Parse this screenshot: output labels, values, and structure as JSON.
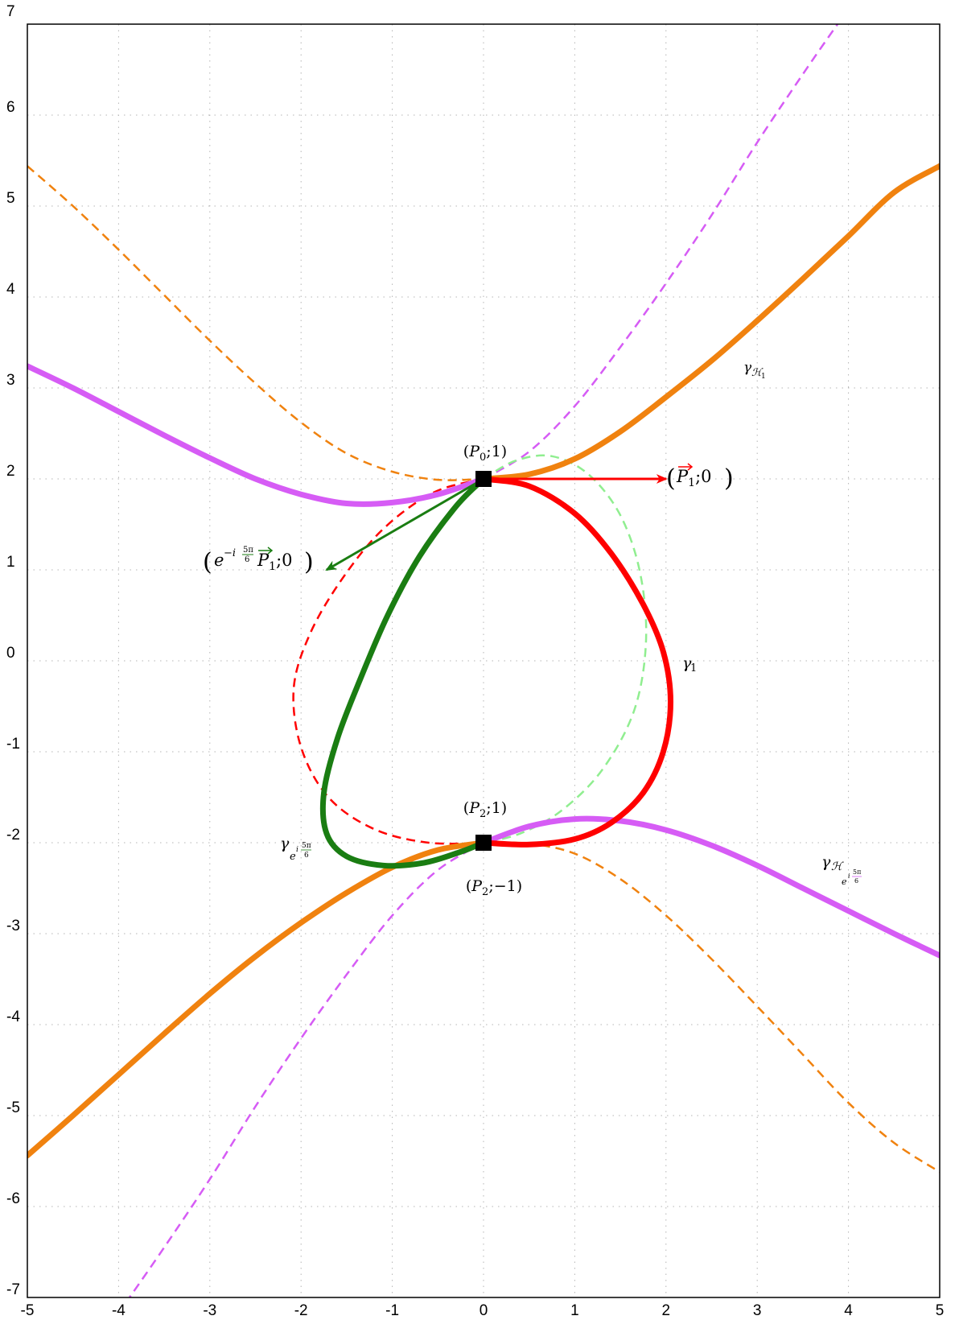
{
  "chart_data": {
    "type": "line",
    "xlim": [
      -5,
      5
    ],
    "ylim": [
      -7,
      7
    ],
    "x_ticks": [
      "-5",
      "-4",
      "-3",
      "-2",
      "-1",
      "0",
      "1",
      "2",
      "3",
      "4",
      "5"
    ],
    "y_ticks": [
      "-7",
      "-6",
      "-5",
      "-4",
      "-3",
      "-2",
      "-1",
      "0",
      "1",
      "2",
      "3",
      "4",
      "5",
      "6",
      "7"
    ],
    "grid": true,
    "series": [
      {
        "key": "gamma_1",
        "color": "#ff0000",
        "style": "solid",
        "x": [
          0,
          0.5,
          1.0,
          1.4,
          1.75,
          1.97,
          2.05,
          1.97,
          1.75,
          1.4,
          1.0,
          0.5,
          0
        ],
        "y": [
          2,
          1.92,
          1.62,
          1.18,
          0.62,
          0.1,
          -0.45,
          -1.0,
          -1.45,
          -1.78,
          -1.96,
          -2.02,
          -2
        ]
      },
      {
        "key": "gamma_1_dashed",
        "color": "#ff0000",
        "style": "dashed",
        "x": [
          0,
          -0.55,
          -1.1,
          -1.55,
          -1.9,
          -2.08,
          -2.0,
          -1.7,
          -1.2,
          -0.6,
          0
        ],
        "y": [
          2,
          1.85,
          1.45,
          0.9,
          0.3,
          -0.3,
          -0.95,
          -1.5,
          -1.85,
          -2.0,
          -2
        ]
      },
      {
        "key": "gamma_e",
        "color": "#1a7d12",
        "style": "solid",
        "x": [
          0,
          -0.3,
          -0.7,
          -1.05,
          -1.35,
          -1.6,
          -1.75,
          -1.72,
          -1.5,
          -1.1,
          -0.65,
          -0.25,
          0
        ],
        "y": [
          2,
          1.7,
          1.15,
          0.5,
          -0.2,
          -0.85,
          -1.45,
          -1.9,
          -2.15,
          -2.25,
          -2.22,
          -2.1,
          -2
        ]
      },
      {
        "key": "gamma_e_dashed",
        "color": "#90ee90",
        "style": "dashed",
        "x": [
          0,
          0.35,
          0.75,
          1.15,
          1.5,
          1.72,
          1.78,
          1.65,
          1.3,
          0.85,
          0.4,
          0
        ],
        "y": [
          2,
          2.2,
          2.25,
          2.05,
          1.6,
          0.95,
          0.2,
          -0.55,
          -1.2,
          -1.65,
          -1.9,
          -2
        ]
      },
      {
        "key": "gamma_H1",
        "color": "#f0820f",
        "style": "solid",
        "x": [
          0,
          0.5,
          1.0,
          1.5,
          2.0,
          2.5,
          3.0,
          3.5,
          4.0,
          4.5,
          5.0
        ],
        "y": [
          2,
          2.05,
          2.22,
          2.52,
          2.9,
          3.3,
          3.74,
          4.2,
          4.67,
          5.15,
          5.44
        ]
      },
      {
        "key": "gamma_H1_lower",
        "color": "#f0820f",
        "style": "solid",
        "x": [
          -5,
          -4.5,
          -4.0,
          -3.5,
          -3.0,
          -2.5,
          -2.0,
          -1.5,
          -1.0,
          -0.5,
          0
        ],
        "y": [
          -5.44,
          -5.0,
          -4.55,
          -4.1,
          -3.66,
          -3.25,
          -2.88,
          -2.55,
          -2.27,
          -2.08,
          -2
        ]
      },
      {
        "key": "gamma_H1_dashed_upper_left",
        "color": "#f0820f",
        "style": "dashed",
        "x": [
          -5,
          -4.5,
          -4.0,
          -3.5,
          -3.0,
          -2.5,
          -2.0,
          -1.5,
          -1.0,
          -0.5,
          0
        ],
        "y": [
          5.44,
          5.0,
          4.52,
          4.02,
          3.52,
          3.05,
          2.62,
          2.28,
          2.08,
          1.99,
          2
        ]
      },
      {
        "key": "gamma_H1_dashed_lower_right",
        "color": "#f0820f",
        "style": "dashed",
        "x": [
          0,
          0.5,
          1.0,
          1.5,
          2.0,
          2.5,
          3.0,
          3.5,
          4.0,
          4.5,
          5.0
        ],
        "y": [
          -2,
          -2.01,
          -2.12,
          -2.4,
          -2.8,
          -3.28,
          -3.8,
          -4.33,
          -4.86,
          -5.3,
          -5.62
        ]
      },
      {
        "key": "gamma_He_upper",
        "color": "#d65cf5",
        "style": "solid",
        "x": [
          -5,
          -4.5,
          -4.0,
          -3.5,
          -3.0,
          -2.5,
          -2.0,
          -1.5,
          -1.0,
          -0.5,
          0
        ],
        "y": [
          3.24,
          3.0,
          2.74,
          2.48,
          2.23,
          2.0,
          1.83,
          1.73,
          1.74,
          1.83,
          2
        ]
      },
      {
        "key": "gamma_He_lower",
        "color": "#d65cf5",
        "style": "solid",
        "x": [
          0,
          0.5,
          1.0,
          1.5,
          2.0,
          2.5,
          3.0,
          3.5,
          4.0,
          4.5,
          5.0
        ],
        "y": [
          -2,
          -1.82,
          -1.74,
          -1.76,
          -1.86,
          -2.03,
          -2.25,
          -2.5,
          -2.75,
          -3.0,
          -3.24
        ]
      },
      {
        "key": "gamma_He_dashed_upper",
        "color": "#d65cf5",
        "style": "dashed",
        "x": [
          0,
          0.5,
          1.0,
          1.5,
          2.0,
          2.5,
          3.0,
          3.5,
          3.88
        ],
        "y": [
          2,
          2.3,
          2.8,
          3.45,
          4.15,
          4.9,
          5.7,
          6.45,
          7.0
        ]
      },
      {
        "key": "gamma_He_dashed_lower",
        "color": "#d65cf5",
        "style": "dashed",
        "x": [
          0,
          -0.5,
          -1.0,
          -1.5,
          -2.0,
          -2.5,
          -3.0,
          -3.5,
          -3.88
        ],
        "y": [
          -2,
          -2.3,
          -2.8,
          -3.45,
          -4.15,
          -4.9,
          -5.7,
          -6.45,
          -7.0
        ]
      }
    ],
    "arrows": [
      {
        "key": "tangent_red",
        "color": "#ff0000",
        "from": [
          0,
          2
        ],
        "to": [
          2.0,
          2
        ]
      },
      {
        "key": "tangent_green",
        "color": "#1a7d12",
        "from": [
          0,
          2
        ],
        "to": [
          -1.72,
          1.0
        ]
      }
    ],
    "points": [
      {
        "key": "P0",
        "x": 0,
        "y": 2
      },
      {
        "key": "P2",
        "x": 0,
        "y": -2
      }
    ],
    "annotations": {
      "P0_label": "(P0;1)",
      "P2_label_top": "(P2;1)",
      "P2_label_bottom": "(P2;−1)",
      "red_vector_label": "(P1→;0)",
      "green_vector_label": "(e^{−i5π/6} P1→;0)",
      "gamma_1_label": "γ1",
      "gamma_e_label": "γ_{e^{i5π/6}}",
      "gamma_H1_label": "γ_{H1}",
      "gamma_He_label": "γ_{H_{e^{i5π/6}}}"
    }
  }
}
